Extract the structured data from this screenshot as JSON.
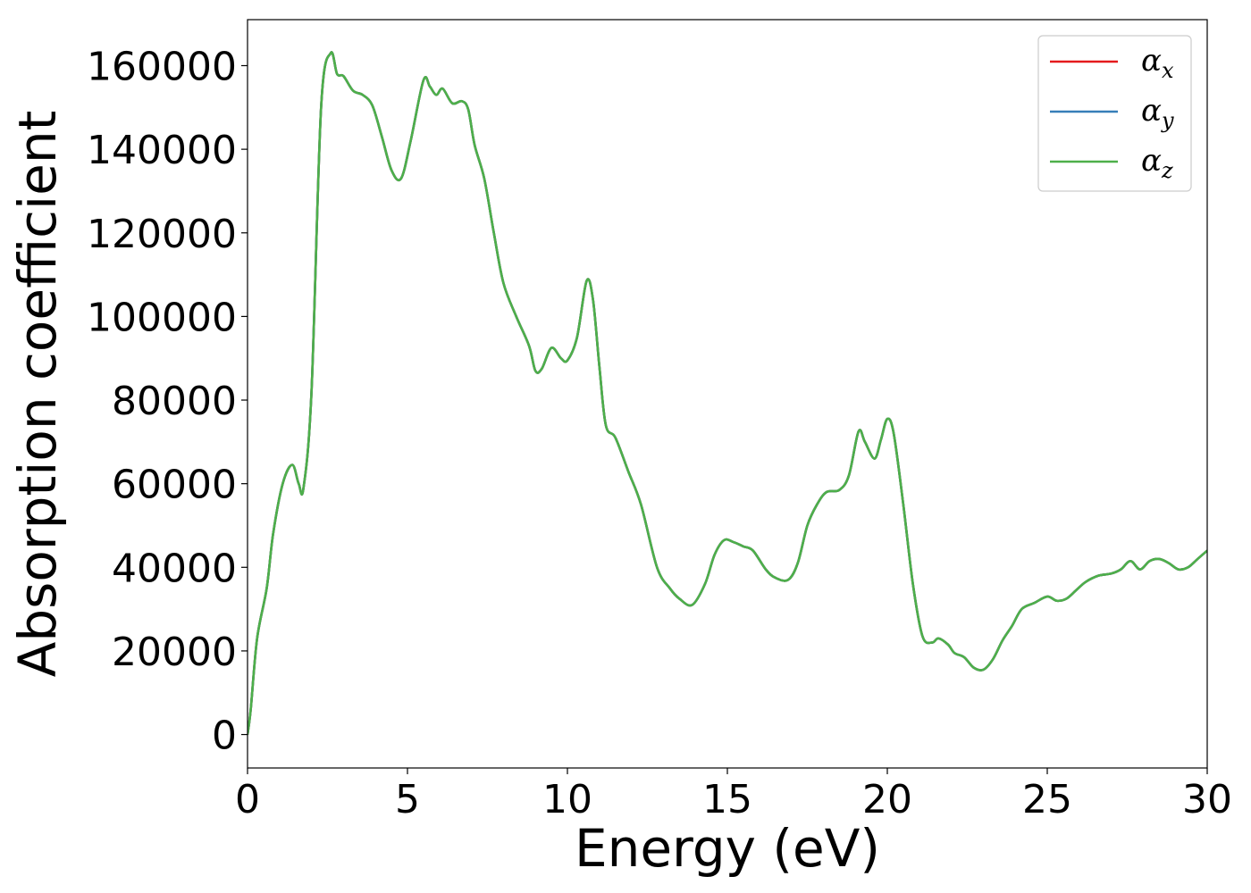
{
  "chart_data": {
    "type": "line",
    "title": "",
    "xlabel": "Energy (eV)",
    "ylabel": "Absorption coefficient",
    "xlim": [
      0,
      30
    ],
    "ylim": [
      -8000,
      171000
    ],
    "xticks": [
      0,
      5,
      10,
      15,
      20,
      25,
      30
    ],
    "xtick_labels": [
      "0",
      "5",
      "10",
      "15",
      "20",
      "25",
      "30"
    ],
    "yticks": [
      0,
      20000,
      40000,
      60000,
      80000,
      100000,
      120000,
      140000,
      160000
    ],
    "ytick_labels": [
      "0",
      "20000",
      "40000",
      "60000",
      "80000",
      "100000",
      "120000",
      "140000",
      "160000"
    ],
    "grid": false,
    "legend_position": "top-right",
    "x": [
      0,
      0.1,
      0.3,
      0.6,
      0.8,
      1.1,
      1.4,
      1.6,
      1.75,
      2.0,
      2.3,
      2.6,
      2.8,
      3.0,
      3.3,
      3.6,
      3.9,
      4.2,
      4.5,
      4.8,
      5.1,
      5.5,
      5.7,
      5.9,
      6.1,
      6.4,
      6.7,
      6.9,
      7.1,
      7.4,
      7.7,
      8.0,
      8.4,
      8.8,
      9.0,
      9.2,
      9.5,
      9.8,
      10.0,
      10.3,
      10.6,
      10.8,
      11.0,
      11.2,
      11.5,
      11.9,
      12.3,
      12.8,
      13.2,
      13.5,
      13.9,
      14.3,
      14.6,
      14.9,
      15.2,
      15.5,
      15.8,
      16.2,
      16.5,
      16.9,
      17.2,
      17.5,
      17.8,
      18.1,
      18.5,
      18.8,
      19.1,
      19.3,
      19.6,
      19.8,
      20.0,
      20.2,
      20.5,
      20.8,
      21.1,
      21.4,
      21.6,
      21.9,
      22.1,
      22.4,
      22.7,
      23.0,
      23.3,
      23.6,
      23.9,
      24.2,
      24.6,
      25.0,
      25.3,
      25.6,
      25.9,
      26.2,
      26.6,
      27.0,
      27.3,
      27.6,
      27.9,
      28.2,
      28.5,
      28.8,
      29.1,
      29.4,
      29.7,
      30.0
    ],
    "series": [
      {
        "name": "αx",
        "color": "#e41a1c",
        "values": [
          0,
          6000,
          23000,
          35000,
          48000,
          60000,
          64500,
          60000,
          59000,
          82000,
          150000,
          163000,
          158000,
          157500,
          154000,
          153000,
          150500,
          143000,
          135000,
          133000,
          142000,
          156500,
          155000,
          153000,
          154500,
          151000,
          151500,
          149500,
          141000,
          133000,
          120000,
          108000,
          100000,
          93000,
          87000,
          87500,
          92500,
          90000,
          89500,
          95000,
          108500,
          104000,
          88000,
          74000,
          71000,
          63000,
          55000,
          40000,
          35000,
          32500,
          31000,
          36000,
          43000,
          46500,
          46000,
          45000,
          44000,
          39500,
          37500,
          37000,
          41000,
          50000,
          55000,
          58000,
          58500,
          62000,
          72500,
          70000,
          66000,
          70500,
          75500,
          72000,
          55000,
          36000,
          23500,
          22000,
          23000,
          21500,
          19500,
          18500,
          16000,
          15500,
          18000,
          22500,
          26000,
          30000,
          31500,
          33000,
          32000,
          32500,
          34500,
          36500,
          38000,
          38500,
          39500,
          41500,
          39500,
          41500,
          42000,
          41000,
          39500,
          40000,
          42000,
          44000
        ]
      },
      {
        "name": "αy",
        "color": "#377eb8",
        "values": [
          0,
          6000,
          23000,
          35000,
          48000,
          60000,
          64500,
          60000,
          59000,
          82000,
          150000,
          163000,
          158000,
          157500,
          154000,
          153000,
          150500,
          143000,
          135000,
          133000,
          142000,
          156500,
          155000,
          153000,
          154500,
          151000,
          151500,
          149500,
          141000,
          133000,
          120000,
          108000,
          100000,
          93000,
          87000,
          87500,
          92500,
          90000,
          89500,
          95000,
          108500,
          104000,
          88000,
          74000,
          71000,
          63000,
          55000,
          40000,
          35000,
          32500,
          31000,
          36000,
          43000,
          46500,
          46000,
          45000,
          44000,
          39500,
          37500,
          37000,
          41000,
          50000,
          55000,
          58000,
          58500,
          62000,
          72500,
          70000,
          66000,
          70500,
          75500,
          72000,
          55000,
          36000,
          23500,
          22000,
          23000,
          21500,
          19500,
          18500,
          16000,
          15500,
          18000,
          22500,
          26000,
          30000,
          31500,
          33000,
          32000,
          32500,
          34500,
          36500,
          38000,
          38500,
          39500,
          41500,
          39500,
          41500,
          42000,
          41000,
          39500,
          40000,
          42000,
          44000
        ]
      },
      {
        "name": "αz",
        "color": "#4daf4a",
        "values": [
          0,
          6000,
          23000,
          35000,
          48000,
          60000,
          64500,
          60000,
          59000,
          82000,
          150000,
          163000,
          158000,
          157500,
          154000,
          153000,
          150500,
          143000,
          135000,
          133000,
          142000,
          156500,
          155000,
          153000,
          154500,
          151000,
          151500,
          149500,
          141000,
          133000,
          120000,
          108000,
          100000,
          93000,
          87000,
          87500,
          92500,
          90000,
          89500,
          95000,
          108500,
          104000,
          88000,
          74000,
          71000,
          63000,
          55000,
          40000,
          35000,
          32500,
          31000,
          36000,
          43000,
          46500,
          46000,
          45000,
          44000,
          39500,
          37500,
          37000,
          41000,
          50000,
          55000,
          58000,
          58500,
          62000,
          72500,
          70000,
          66000,
          70500,
          75500,
          72000,
          55000,
          36000,
          23500,
          22000,
          23000,
          21500,
          19500,
          18500,
          16000,
          15500,
          18000,
          22500,
          26000,
          30000,
          31500,
          33000,
          32000,
          32500,
          34500,
          36500,
          38000,
          38500,
          39500,
          41500,
          39500,
          41500,
          42000,
          41000,
          39500,
          40000,
          42000,
          44000
        ]
      }
    ],
    "legend": [
      {
        "symbol": "α",
        "subscript": "x",
        "color": "#e41a1c"
      },
      {
        "symbol": "α",
        "subscript": "y",
        "color": "#377eb8"
      },
      {
        "symbol": "α",
        "subscript": "z",
        "color": "#4daf4a"
      }
    ]
  }
}
